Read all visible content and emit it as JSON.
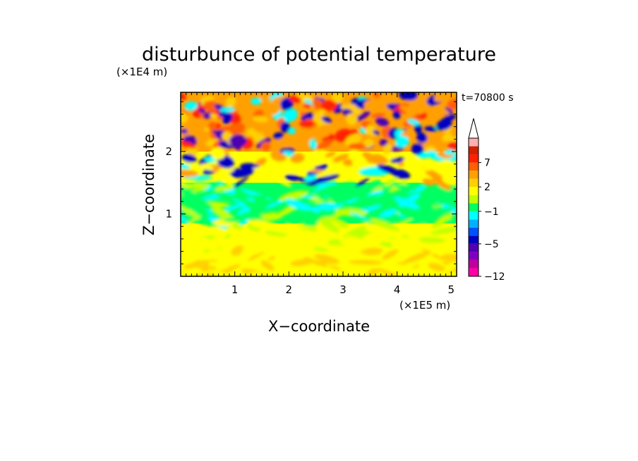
{
  "chart_data": {
    "type": "heatmap",
    "title": "disturbunce of potential temperature",
    "time_label": "t=70800 s",
    "xlabel": "X−coordinate",
    "ylabel": "Z−coordinate",
    "x_unit": "(×1E5 m)",
    "y_unit": "(×1E4 m)",
    "xlim": [
      0,
      5.1
    ],
    "ylim": [
      0,
      2.95
    ],
    "x_ticks": [
      1,
      2,
      3,
      4,
      5
    ],
    "x_tick_labels": [
      "1",
      "2",
      "3",
      "4",
      "5"
    ],
    "y_ticks": [
      1,
      2
    ],
    "y_tick_labels": [
      "1",
      "2"
    ],
    "colorbar": {
      "levels": [
        -12,
        -10,
        -8,
        -6,
        -5,
        -4,
        -3,
        -2,
        -1,
        0,
        1,
        2,
        3,
        5,
        7,
        9,
        11
      ],
      "colors": [
        "#ff00a8",
        "#c000a0",
        "#8000c0",
        "#5000b0",
        "#0000c0",
        "#0050ff",
        "#00b0ff",
        "#00ffff",
        "#00ff60",
        "#c0ff00",
        "#ffff00",
        "#ffd000",
        "#ffa000",
        "#ff6000",
        "#ff2000",
        "#d02000",
        "#ffb0b0"
      ],
      "tick_labels": [
        "7",
        "2",
        "−1",
        "−5",
        "−12"
      ],
      "tick_values": [
        7,
        2,
        -1,
        -5,
        -12
      ],
      "extend": "max"
    },
    "field_description_bands": [
      {
        "z_range": [
          0,
          0.4
        ],
        "value": 1.5
      },
      {
        "z_range": [
          0.4,
          0.85
        ],
        "value": 1.0
      },
      {
        "z_range": [
          0.85,
          1.5
        ],
        "value": -0.5
      },
      {
        "z_range": [
          1.5,
          2.0
        ],
        "value": 1.5
      },
      {
        "z_range": [
          2.0,
          2.95
        ],
        "value": 3.0
      }
    ]
  }
}
